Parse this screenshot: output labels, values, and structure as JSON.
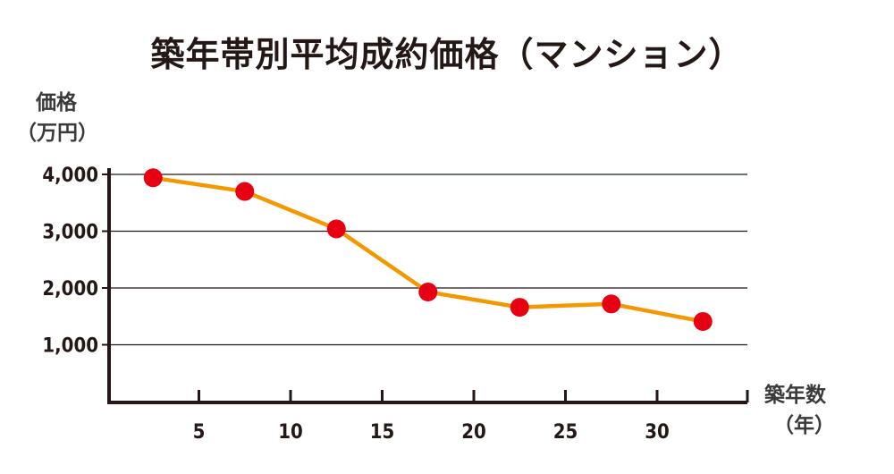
{
  "chart_data": {
    "type": "line",
    "title": "築年帯別平均成約価格（マンション）",
    "ylabel_line1": "価格",
    "ylabel_line2": "（万円）",
    "xlabel_line1": "築年数",
    "xlabel_line2": "（年）",
    "xlim": [
      0,
      35
    ],
    "ylim": [
      0,
      4000
    ],
    "x_ticks": [
      5,
      10,
      15,
      20,
      25,
      30
    ],
    "y_ticks": [
      1000,
      2000,
      3000,
      4000
    ],
    "y_tick_labels": [
      "1,000",
      "2,000",
      "3,000",
      "4,000"
    ],
    "grid": "horizontal",
    "series": [
      {
        "x": [
          2.5,
          7.5,
          12.5,
          17.5,
          22.5,
          27.5,
          32.5
        ],
        "y": [
          3940,
          3700,
          3040,
          1930,
          1660,
          1720,
          1410
        ],
        "line_color": "#f39800",
        "marker_color": "#e60012"
      }
    ]
  }
}
